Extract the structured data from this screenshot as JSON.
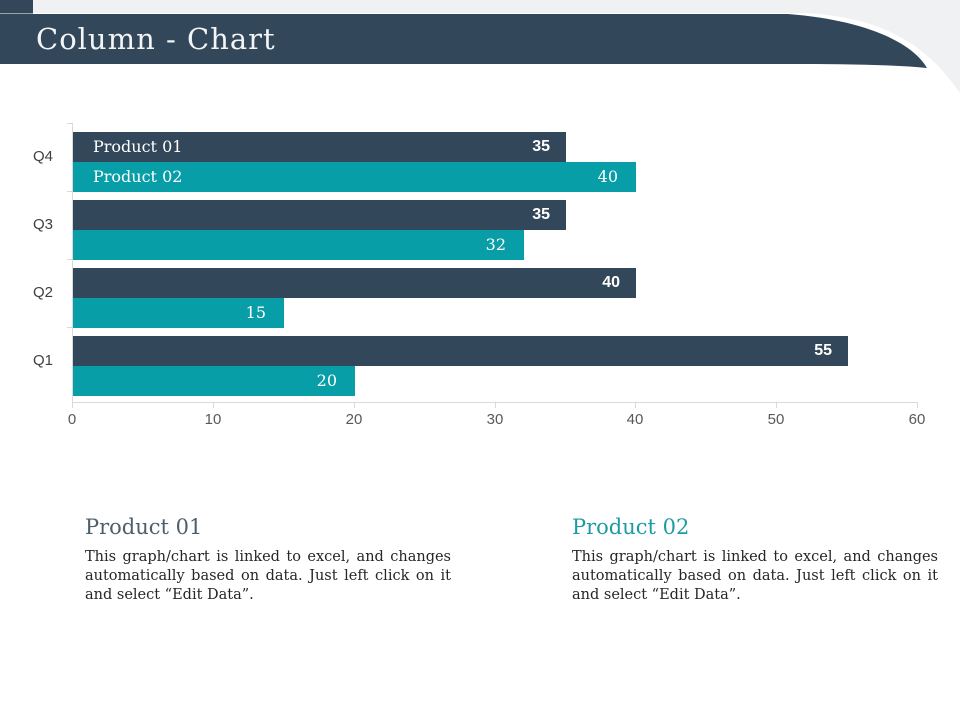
{
  "header": {
    "title": "Column - Chart"
  },
  "theme": {
    "dark": "#33475A",
    "teal": "#089EA8",
    "band_gray": "#EFF1F3",
    "axis_line": "#D9D9D9",
    "tick_text": "#595959",
    "category_text": "#404040",
    "title_text": "#F2F4F6",
    "body_text": "#262626"
  },
  "chart_data": {
    "type": "bar",
    "orientation": "horizontal",
    "title": "",
    "xlabel": "",
    "ylabel": "",
    "categories": [
      "Q4",
      "Q3",
      "Q2",
      "Q1"
    ],
    "series": [
      {
        "name": "Product 01",
        "color": "#33475A",
        "values": [
          35,
          35,
          40,
          55
        ]
      },
      {
        "name": "Product 02",
        "color": "#089EA8",
        "values": [
          40,
          32,
          15,
          20
        ]
      }
    ],
    "xlim": [
      0,
      60
    ],
    "xticks": [
      0,
      10,
      20,
      30,
      40,
      50,
      60
    ],
    "grid": false,
    "legend_position": "series-names-inside-first-bars",
    "value_labels": "inside-end"
  },
  "descriptions": [
    {
      "heading": "Product 01",
      "heading_color": "#4E5E6B",
      "body": "This graph/chart is linked to excel, and changes automatically based on data. Just left click on it and select “Edit Data”."
    },
    {
      "heading": "Product 02",
      "heading_color": "#1D9BA4",
      "body": "This graph/chart is linked to excel, and changes automatically based on data. Just left click on it and select “Edit Data”."
    }
  ]
}
